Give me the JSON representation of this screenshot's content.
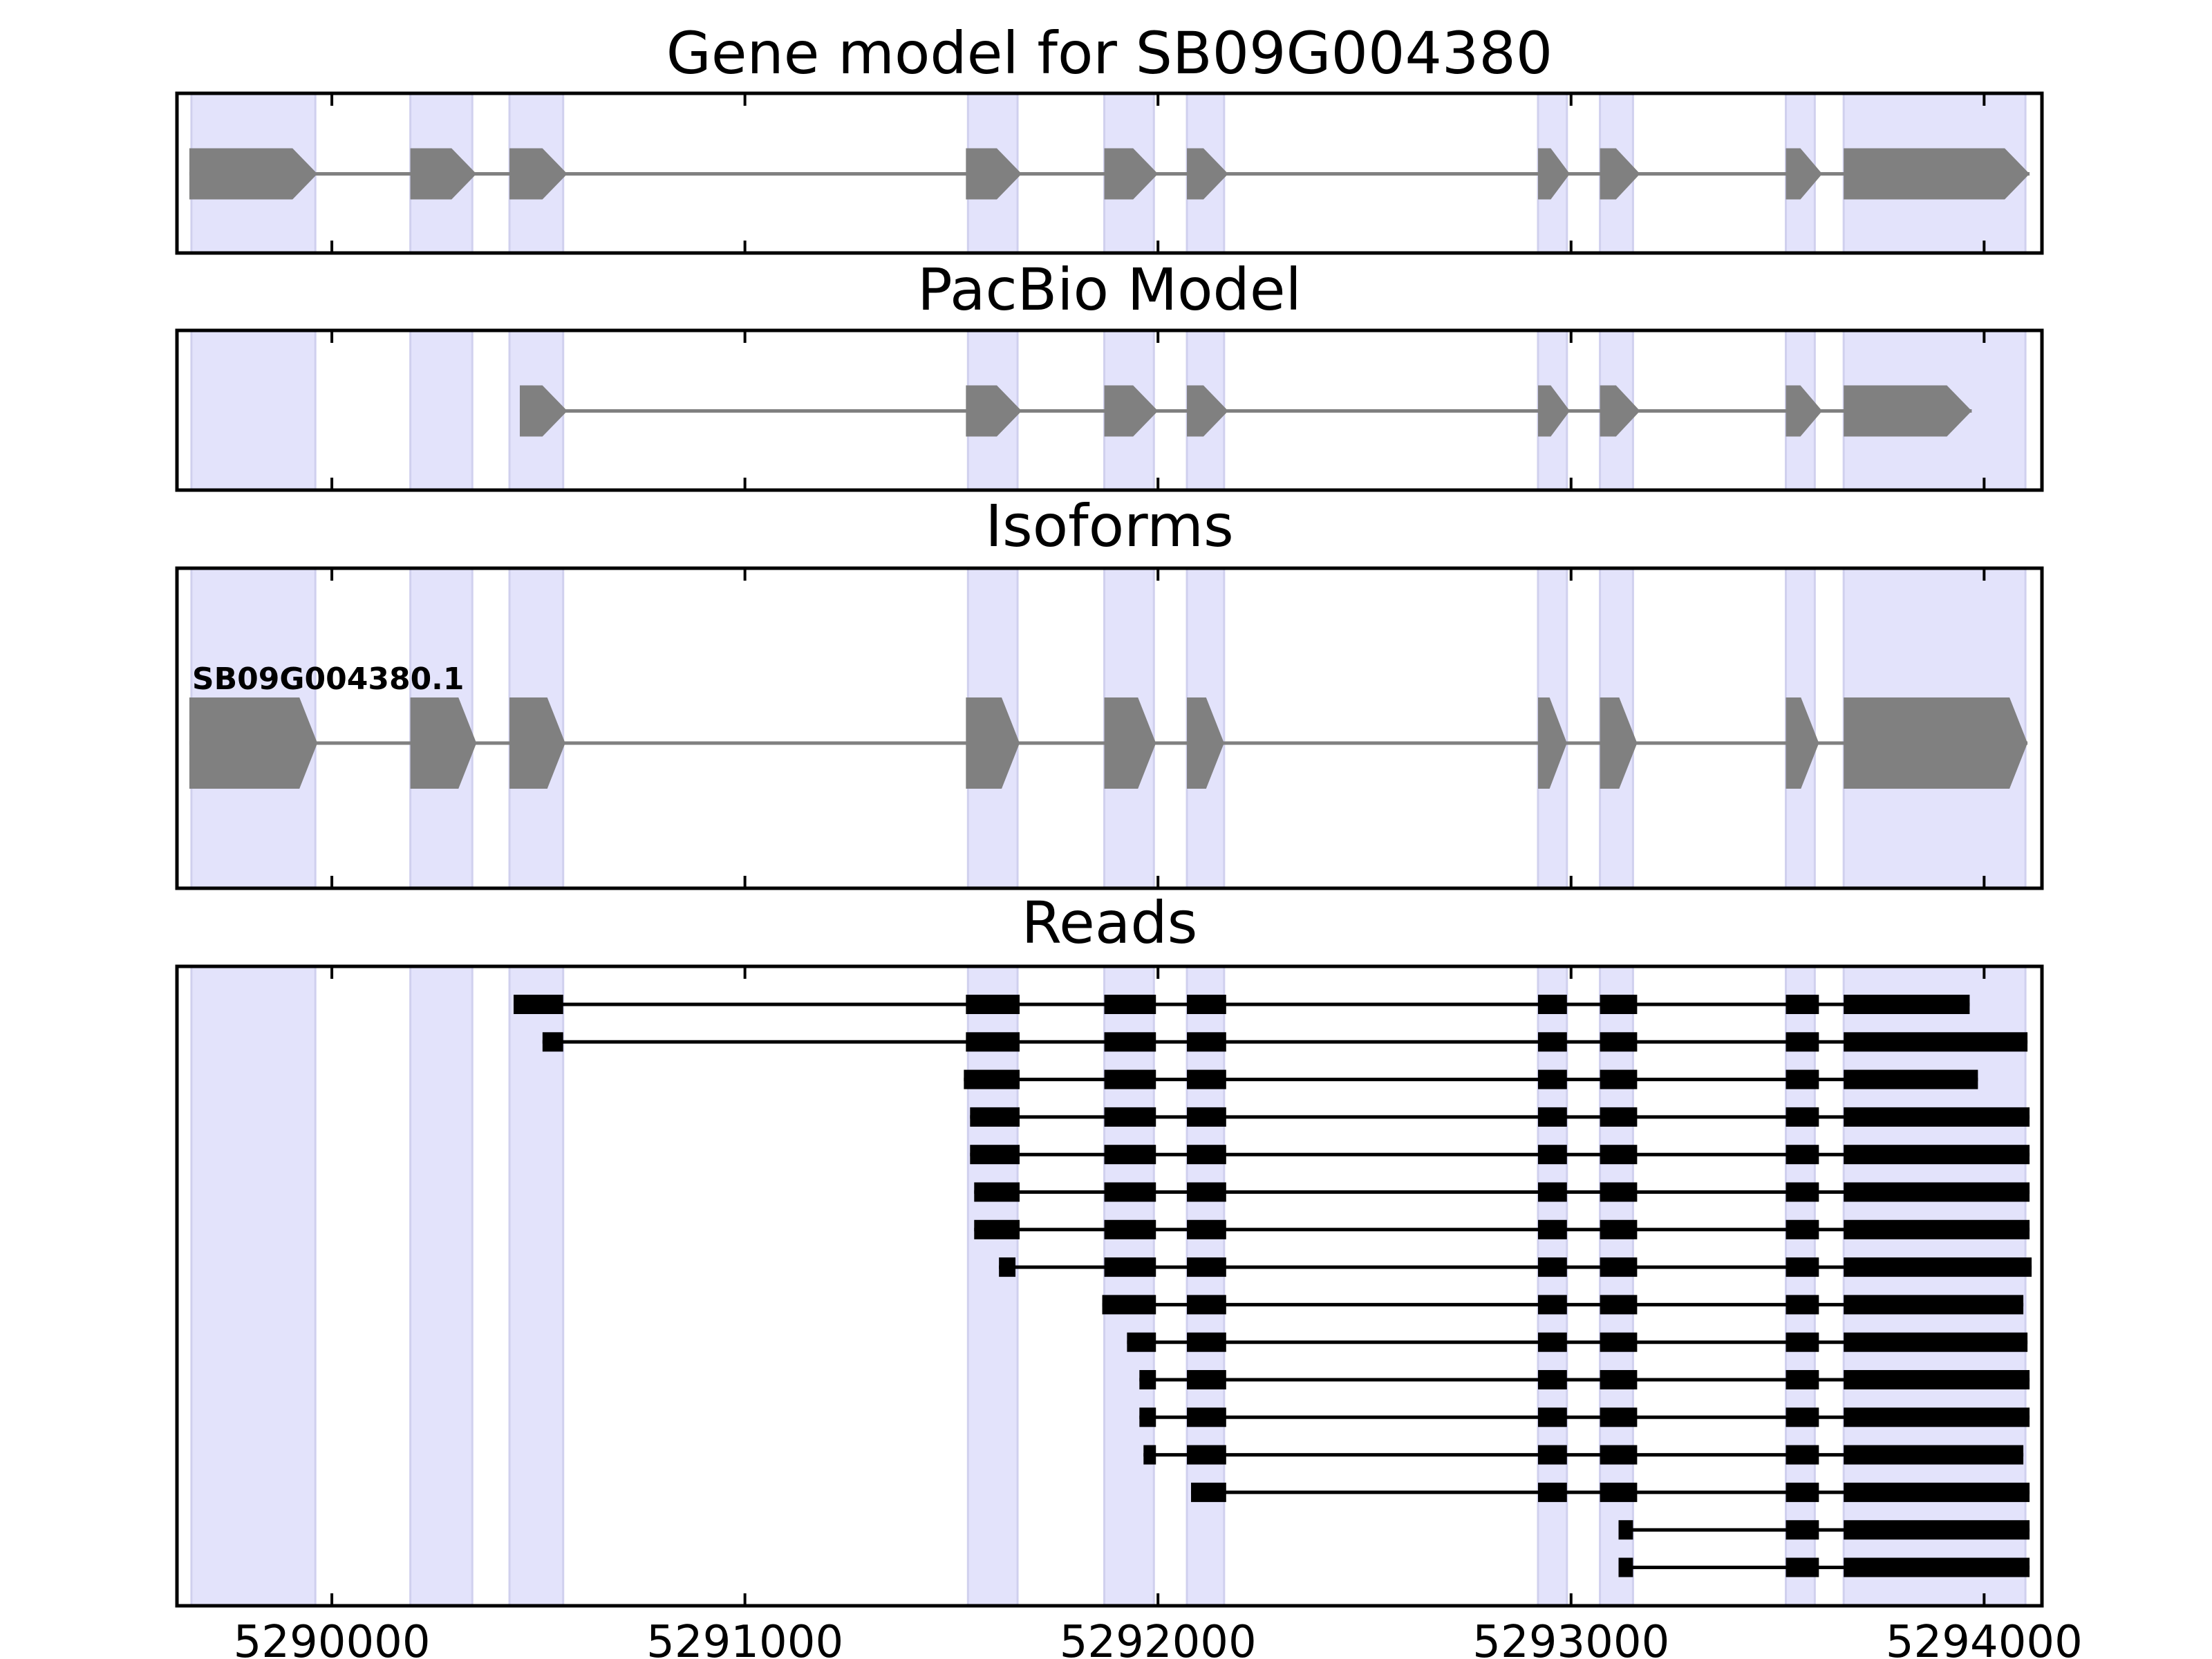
{
  "chart_data": {
    "type": "gene_track",
    "x_axis": {
      "ticks": [
        5290000,
        5291000,
        5292000,
        5293000,
        5294000
      ],
      "tick_labels": [
        "5290000",
        "5291000",
        "5292000",
        "5293000",
        "5294000"
      ],
      "xlim": [
        5289625,
        5294140
      ]
    },
    "highlight_regions": [
      [
        5289660,
        5289960
      ],
      [
        5290190,
        5290340
      ],
      [
        5290430,
        5290560
      ],
      [
        5291540,
        5291660
      ],
      [
        5291870,
        5291990
      ],
      [
        5292070,
        5292160
      ],
      [
        5292920,
        5292990
      ],
      [
        5293070,
        5293150
      ],
      [
        5293520,
        5293590
      ],
      [
        5293660,
        5294100
      ]
    ],
    "highlight_color": "#e3e3fb",
    "feature_color": "#808080",
    "read_color": "#000000",
    "panels": [
      {
        "title": "Gene model for SB09G004380",
        "strand": "+",
        "exons": [
          [
            5289655,
            5289965
          ],
          [
            5290190,
            5290350
          ],
          [
            5290430,
            5290570
          ],
          [
            5291535,
            5291670
          ],
          [
            5291870,
            5292000
          ],
          [
            5292070,
            5292170
          ],
          [
            5292920,
            5292997
          ],
          [
            5293070,
            5293167
          ],
          [
            5293520,
            5293608
          ],
          [
            5293660,
            5294110
          ]
        ]
      },
      {
        "title": "PacBio Model",
        "strand": "+",
        "exons": [
          [
            5290455,
            5290570
          ],
          [
            5291535,
            5291670
          ],
          [
            5291870,
            5292000
          ],
          [
            5292070,
            5292170
          ],
          [
            5292920,
            5292997
          ],
          [
            5293070,
            5293167
          ],
          [
            5293520,
            5293608
          ],
          [
            5293660,
            5293970
          ]
        ]
      },
      {
        "title": "Isoforms",
        "strand": "+",
        "isoforms": [
          {
            "name": "SB09G004380.1",
            "exons": [
              [
                5289655,
                5289965
              ],
              [
                5290190,
                5290350
              ],
              [
                5290430,
                5290565
              ],
              [
                5291535,
                5291665
              ],
              [
                5291870,
                5291995
              ],
              [
                5292070,
                5292160
              ],
              [
                5292920,
                5292990
              ],
              [
                5293070,
                5293160
              ],
              [
                5293520,
                5293600
              ],
              [
                5293660,
                5294105
              ]
            ]
          }
        ]
      },
      {
        "title": "Reads",
        "reads": [
          [
            [
              5290440,
              5290560
            ],
            [
              5291535,
              5291665
            ],
            [
              5291870,
              5291995
            ],
            [
              5292070,
              5292165
            ],
            [
              5292920,
              5292990
            ],
            [
              5293070,
              5293160
            ],
            [
              5293520,
              5293600
            ],
            [
              5293660,
              5293965
            ]
          ],
          [
            [
              5290510,
              5290560
            ],
            [
              5291535,
              5291665
            ],
            [
              5291870,
              5291995
            ],
            [
              5292070,
              5292165
            ],
            [
              5292920,
              5292990
            ],
            [
              5293070,
              5293160
            ],
            [
              5293520,
              5293600
            ],
            [
              5293660,
              5294105
            ]
          ],
          [
            [
              5291530,
              5291665
            ],
            [
              5291870,
              5291995
            ],
            [
              5292070,
              5292165
            ],
            [
              5292920,
              5292990
            ],
            [
              5293070,
              5293160
            ],
            [
              5293520,
              5293600
            ],
            [
              5293660,
              5293985
            ]
          ],
          [
            [
              5291545,
              5291665
            ],
            [
              5291870,
              5291995
            ],
            [
              5292070,
              5292165
            ],
            [
              5292920,
              5292990
            ],
            [
              5293070,
              5293160
            ],
            [
              5293520,
              5293600
            ],
            [
              5293660,
              5294110
            ]
          ],
          [
            [
              5291545,
              5291665
            ],
            [
              5291870,
              5291995
            ],
            [
              5292070,
              5292165
            ],
            [
              5292920,
              5292990
            ],
            [
              5293070,
              5293160
            ],
            [
              5293520,
              5293600
            ],
            [
              5293660,
              5294110
            ]
          ],
          [
            [
              5291555,
              5291665
            ],
            [
              5291870,
              5291995
            ],
            [
              5292070,
              5292165
            ],
            [
              5292920,
              5292990
            ],
            [
              5293070,
              5293160
            ],
            [
              5293520,
              5293600
            ],
            [
              5293660,
              5294110
            ]
          ],
          [
            [
              5291555,
              5291665
            ],
            [
              5291870,
              5291995
            ],
            [
              5292070,
              5292165
            ],
            [
              5292920,
              5292990
            ],
            [
              5293070,
              5293160
            ],
            [
              5293520,
              5293600
            ],
            [
              5293660,
              5294110
            ]
          ],
          [
            [
              5291615,
              5291655
            ],
            [
              5291870,
              5291995
            ],
            [
              5292070,
              5292165
            ],
            [
              5292920,
              5292990
            ],
            [
              5293070,
              5293160
            ],
            [
              5293520,
              5293600
            ],
            [
              5293660,
              5294115
            ]
          ],
          [
            [
              5291865,
              5291995
            ],
            [
              5292070,
              5292165
            ],
            [
              5292920,
              5292990
            ],
            [
              5293070,
              5293160
            ],
            [
              5293520,
              5293600
            ],
            [
              5293660,
              5294095
            ]
          ],
          [
            [
              5291925,
              5291995
            ],
            [
              5292070,
              5292165
            ],
            [
              5292920,
              5292990
            ],
            [
              5293070,
              5293160
            ],
            [
              5293520,
              5293600
            ],
            [
              5293660,
              5294105
            ]
          ],
          [
            [
              5291955,
              5291995
            ],
            [
              5292070,
              5292165
            ],
            [
              5292920,
              5292990
            ],
            [
              5293070,
              5293160
            ],
            [
              5293520,
              5293600
            ],
            [
              5293660,
              5294110
            ]
          ],
          [
            [
              5291955,
              5291995
            ],
            [
              5292070,
              5292165
            ],
            [
              5292920,
              5292990
            ],
            [
              5293070,
              5293160
            ],
            [
              5293520,
              5293600
            ],
            [
              5293660,
              5294110
            ]
          ],
          [
            [
              5291965,
              5291995
            ],
            [
              5292070,
              5292165
            ],
            [
              5292920,
              5292990
            ],
            [
              5293070,
              5293160
            ],
            [
              5293520,
              5293600
            ],
            [
              5293660,
              5294095
            ]
          ],
          [
            [
              5292080,
              5292165
            ],
            [
              5292920,
              5292990
            ],
            [
              5293070,
              5293160
            ],
            [
              5293520,
              5293600
            ],
            [
              5293660,
              5294110
            ]
          ],
          [
            [
              5293115,
              5293150
            ],
            [
              5293520,
              5293600
            ],
            [
              5293660,
              5294110
            ]
          ],
          [
            [
              5293115,
              5293150
            ],
            [
              5293520,
              5293600
            ],
            [
              5293660,
              5294110
            ]
          ]
        ]
      }
    ]
  }
}
